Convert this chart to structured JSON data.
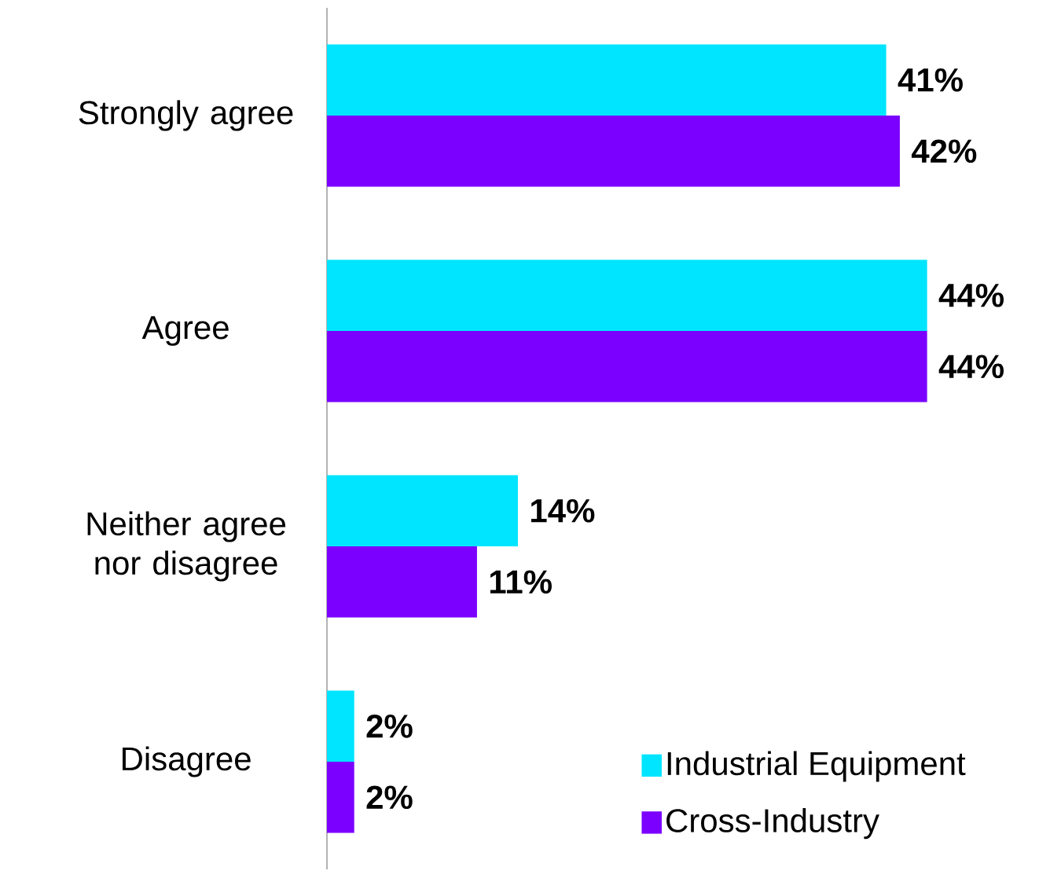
{
  "chart_data": {
    "type": "bar",
    "orientation": "horizontal",
    "categories": [
      "Strongly agree",
      "Agree",
      "Neither agree nor disagree",
      "Disagree"
    ],
    "legend": "bottom right",
    "series": [
      {
        "name": "Industrial Equipment",
        "color": "#00e5ff",
        "values": [
          41,
          44,
          14,
          2
        ],
        "value_labels": [
          "41%",
          "44%",
          "14%",
          "2%"
        ]
      },
      {
        "name": "Cross-Industry",
        "color": "#7b00ff",
        "values": [
          42,
          44,
          11,
          2
        ],
        "value_labels": [
          "42%",
          "44%",
          "11%",
          "2%"
        ]
      }
    ]
  }
}
